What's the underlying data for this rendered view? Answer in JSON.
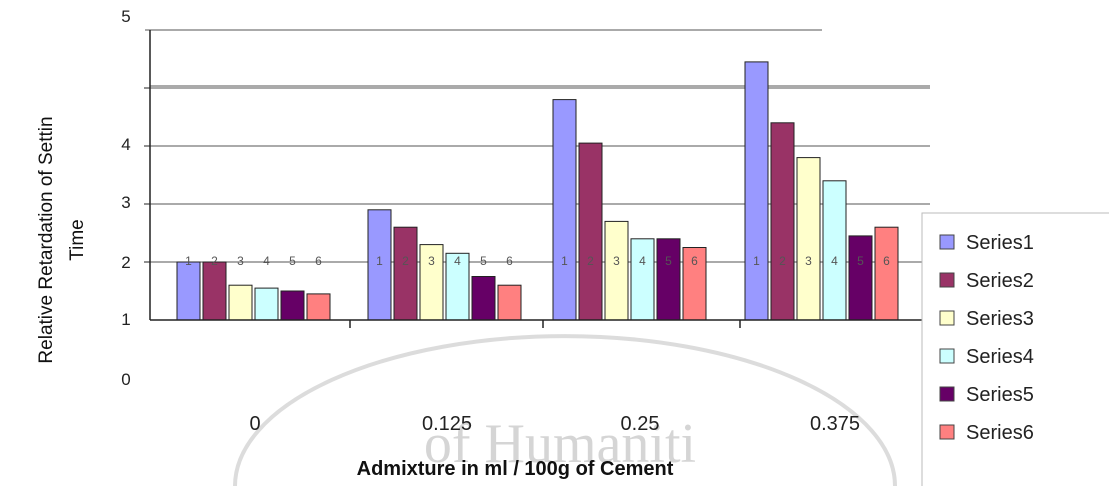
{
  "chart_data": {
    "type": "bar",
    "categories": [
      "0",
      "0.125",
      "0.25",
      "0.375"
    ],
    "series": [
      {
        "name": "Series1",
        "color": "#9999ff",
        "values": [
          2.0,
          2.9,
          4.8,
          5.45
        ]
      },
      {
        "name": "Series2",
        "color": "#993366",
        "values": [
          2.0,
          2.6,
          4.05,
          4.4
        ]
      },
      {
        "name": "Series3",
        "color": "#ffffcc",
        "values": [
          1.6,
          2.3,
          2.7,
          3.8
        ]
      },
      {
        "name": "Series4",
        "color": "#ccffff",
        "values": [
          1.55,
          2.15,
          2.4,
          3.4
        ]
      },
      {
        "name": "Series5",
        "color": "#660066",
        "values": [
          1.5,
          1.75,
          2.4,
          2.45
        ]
      },
      {
        "name": "Series6",
        "color": "#ff8080",
        "values": [
          1.45,
          1.6,
          2.25,
          2.6
        ]
      }
    ],
    "y_tick_labels": [
      "0",
      "1",
      "2",
      "3",
      "4",
      "5"
    ],
    "xlabel": "Admixture  in ml / 100g of Cement",
    "ylabel_line1": "Relative Retardation of Settin",
    "ylabel_line2": "Time",
    "ylim": [
      1,
      5.5
    ],
    "grid": true,
    "legend_position": "right",
    "bar_number_labels": [
      "1",
      "2",
      "3",
      "4",
      "5",
      "6"
    ],
    "watermark_text": "of Humaniti"
  }
}
